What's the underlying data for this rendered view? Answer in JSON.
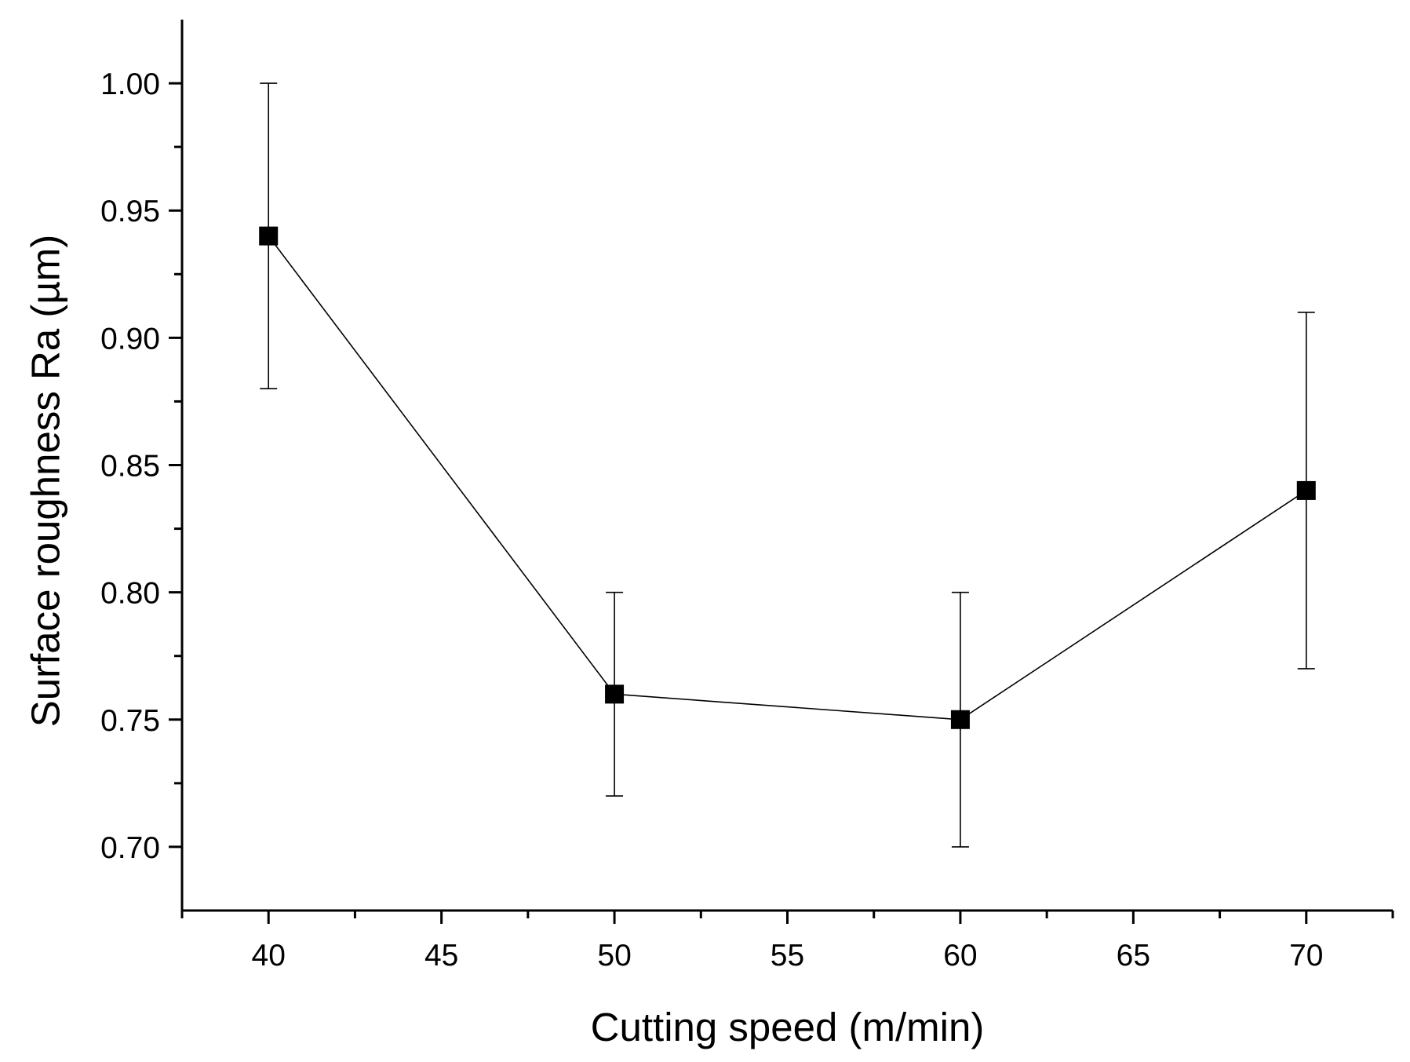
{
  "chart_data": {
    "type": "line",
    "title": "",
    "xlabel": "Cutting speed (m/min)",
    "ylabel": "Surface roughness Ra (µm)",
    "xlim": [
      37.5,
      72.5
    ],
    "ylim": [
      0.675,
      1.025
    ],
    "x_ticks": [
      40,
      45,
      50,
      55,
      60,
      65,
      70
    ],
    "x_tick_labels": [
      "40",
      "45",
      "50",
      "55",
      "60",
      "65",
      "70"
    ],
    "y_ticks": [
      0.7,
      0.75,
      0.8,
      0.85,
      0.9,
      0.95,
      1.0
    ],
    "y_tick_labels": [
      "0.70",
      "0.75",
      "0.80",
      "0.85",
      "0.90",
      "0.95",
      "1.00"
    ],
    "grid": false,
    "legend": "none",
    "series": [
      {
        "x": [
          40,
          50,
          60,
          70
        ],
        "y": [
          0.94,
          0.76,
          0.75,
          0.84
        ],
        "error_low": [
          0.88,
          0.72,
          0.7,
          0.77
        ],
        "error_high": [
          1.0,
          0.8,
          0.8,
          0.91
        ],
        "marker": "square",
        "color": "#000000"
      }
    ]
  }
}
